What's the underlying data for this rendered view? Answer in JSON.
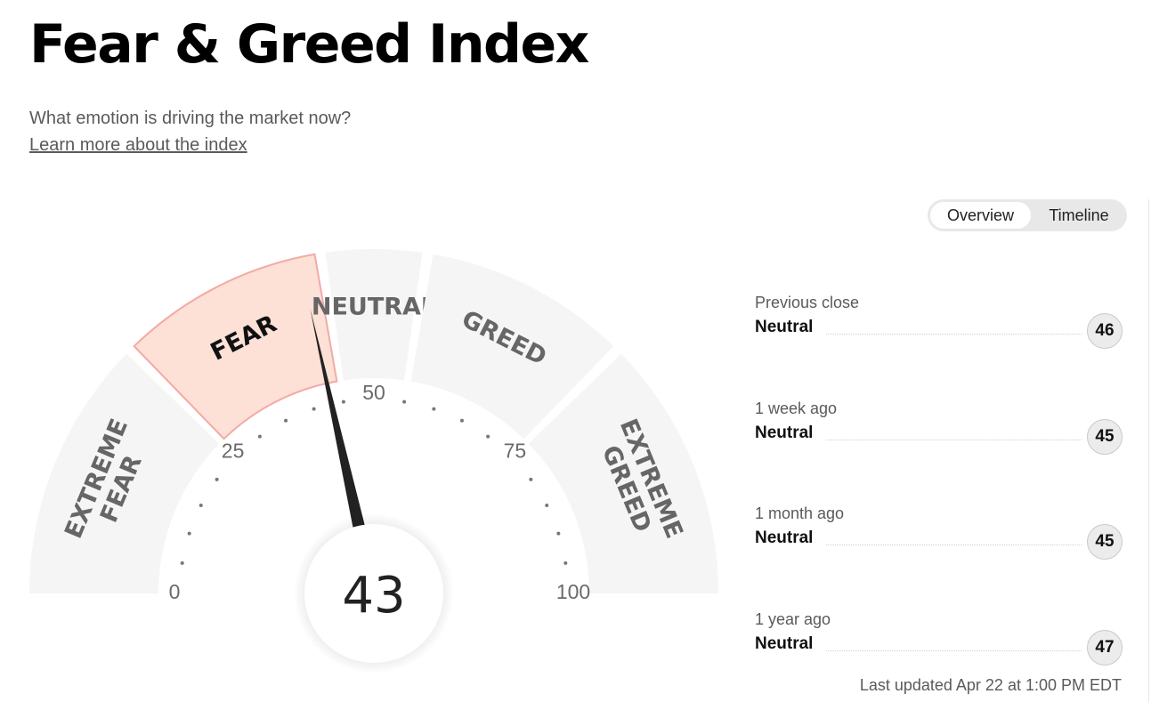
{
  "header": {
    "title": "Fear & Greed Index",
    "subtitle": "What emotion is driving the market now?",
    "learn_more": "Learn more about the index"
  },
  "gauge": {
    "value": 43,
    "scale_min": 0,
    "scale_max": 100,
    "active_zone": "FEAR",
    "zones": [
      {
        "label": [
          "EXTREME",
          "FEAR"
        ],
        "range": [
          0,
          25
        ]
      },
      {
        "label": [
          "FEAR"
        ],
        "range": [
          25,
          45
        ]
      },
      {
        "label": [
          "NEUTRAL"
        ],
        "range": [
          45,
          55
        ]
      },
      {
        "label": [
          "GREED"
        ],
        "range": [
          55,
          75
        ]
      },
      {
        "label": [
          "EXTREME",
          "GREED"
        ],
        "range": [
          75,
          100
        ]
      }
    ],
    "tick_labels": [
      "0",
      "25",
      "50",
      "75",
      "100"
    ],
    "colors": {
      "inactive_fill": "#f5f5f5",
      "active_fill": "#fde0d6",
      "active_stroke": "#f3aaa7",
      "label_color": "#666666",
      "active_label_color": "#111111",
      "needle": "#222222"
    }
  },
  "toggle": {
    "options": [
      "Overview",
      "Timeline"
    ],
    "selected": "Overview"
  },
  "history": [
    {
      "label": "Previous close",
      "rating": "Neutral",
      "value": "46"
    },
    {
      "label": "1 week ago",
      "rating": "Neutral",
      "value": "45"
    },
    {
      "label": "1 month ago",
      "rating": "Neutral",
      "value": "45"
    },
    {
      "label": "1 year ago",
      "rating": "Neutral",
      "value": "47"
    }
  ],
  "last_updated": "Last updated Apr 22 at 1:00 PM EDT"
}
